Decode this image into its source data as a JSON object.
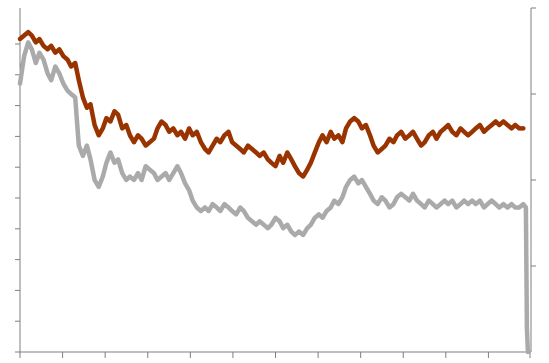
{
  "chart_data": {
    "type": "line",
    "title": "",
    "xlabel": "",
    "ylabel": "",
    "x_tick_count": 13,
    "left_tick_count": 11,
    "right_tick_count": 4,
    "xlim": [
      0,
      100
    ],
    "ylim": [
      0,
      100
    ],
    "grid": false,
    "legend": "none",
    "series": [
      {
        "color": "#993300",
        "values": [
          [
            0,
            91
          ],
          [
            0.8,
            92
          ],
          [
            1.6,
            93
          ],
          [
            2.3,
            92
          ],
          [
            3.1,
            90
          ],
          [
            3.8,
            91
          ],
          [
            4.6,
            89
          ],
          [
            5.4,
            88
          ],
          [
            6.1,
            89
          ],
          [
            6.9,
            87
          ],
          [
            7.7,
            88
          ],
          [
            8.5,
            86
          ],
          [
            9.3,
            85
          ],
          [
            10.0,
            83
          ],
          [
            10.8,
            84
          ],
          [
            11.5,
            79
          ],
          [
            12.3,
            74
          ],
          [
            13.1,
            71
          ],
          [
            13.8,
            72
          ],
          [
            14.6,
            66
          ],
          [
            15.4,
            63
          ],
          [
            16.2,
            65
          ],
          [
            16.9,
            68
          ],
          [
            17.7,
            67
          ],
          [
            18.5,
            70
          ],
          [
            19.2,
            69
          ],
          [
            20.0,
            65
          ],
          [
            20.8,
            66
          ],
          [
            21.5,
            63
          ],
          [
            22.3,
            61
          ],
          [
            23.1,
            63
          ],
          [
            23.8,
            62
          ],
          [
            24.6,
            60
          ],
          [
            25.4,
            61
          ],
          [
            26.2,
            62
          ],
          [
            26.9,
            65
          ],
          [
            27.7,
            67
          ],
          [
            28.5,
            66
          ],
          [
            29.2,
            64
          ],
          [
            30.0,
            65
          ],
          [
            30.8,
            63
          ],
          [
            31.5,
            64
          ],
          [
            32.3,
            62
          ],
          [
            33.1,
            65
          ],
          [
            33.8,
            63
          ],
          [
            34.6,
            64
          ],
          [
            35.4,
            61
          ],
          [
            36.2,
            59
          ],
          [
            36.9,
            58
          ],
          [
            37.7,
            60
          ],
          [
            38.5,
            62
          ],
          [
            39.2,
            61
          ],
          [
            40.0,
            63
          ],
          [
            40.8,
            64
          ],
          [
            41.5,
            61
          ],
          [
            42.3,
            60
          ],
          [
            43.1,
            59
          ],
          [
            43.8,
            58
          ],
          [
            44.6,
            60
          ],
          [
            45.4,
            59
          ],
          [
            46.2,
            58
          ],
          [
            46.9,
            57
          ],
          [
            47.7,
            58
          ],
          [
            48.5,
            56
          ],
          [
            49.2,
            55
          ],
          [
            50.0,
            54
          ],
          [
            50.8,
            57
          ],
          [
            51.5,
            55
          ],
          [
            52.3,
            58
          ],
          [
            53.1,
            56
          ],
          [
            53.8,
            54
          ],
          [
            54.6,
            52
          ],
          [
            55.4,
            51
          ],
          [
            56.2,
            53
          ],
          [
            56.9,
            55
          ],
          [
            57.7,
            58
          ],
          [
            58.5,
            61
          ],
          [
            59.2,
            63
          ],
          [
            60.0,
            61
          ],
          [
            60.8,
            64
          ],
          [
            61.5,
            62
          ],
          [
            62.3,
            63
          ],
          [
            63.1,
            61
          ],
          [
            63.8,
            65
          ],
          [
            64.6,
            67
          ],
          [
            65.4,
            68
          ],
          [
            66.2,
            67
          ],
          [
            66.9,
            65
          ],
          [
            67.7,
            66
          ],
          [
            68.5,
            63
          ],
          [
            69.2,
            60
          ],
          [
            70.0,
            58
          ],
          [
            70.8,
            59
          ],
          [
            71.5,
            60
          ],
          [
            72.3,
            62
          ],
          [
            73.1,
            61
          ],
          [
            73.8,
            63
          ],
          [
            74.6,
            64
          ],
          [
            75.4,
            62
          ],
          [
            76.2,
            63
          ],
          [
            76.9,
            64
          ],
          [
            77.7,
            62
          ],
          [
            78.5,
            60
          ],
          [
            79.2,
            61
          ],
          [
            80.0,
            63
          ],
          [
            80.8,
            64
          ],
          [
            81.5,
            62
          ],
          [
            82.3,
            64
          ],
          [
            83.1,
            65
          ],
          [
            83.8,
            66
          ],
          [
            84.6,
            64
          ],
          [
            85.4,
            63
          ],
          [
            86.2,
            65
          ],
          [
            86.9,
            64
          ],
          [
            87.7,
            63
          ],
          [
            88.5,
            64
          ],
          [
            89.2,
            65
          ],
          [
            90.0,
            66
          ],
          [
            90.8,
            64
          ],
          [
            91.5,
            65
          ],
          [
            92.3,
            66
          ],
          [
            93.1,
            67
          ],
          [
            93.8,
            66
          ],
          [
            94.6,
            67
          ],
          [
            95.4,
            66
          ],
          [
            96.2,
            65
          ],
          [
            96.9,
            66
          ],
          [
            97.7,
            65
          ],
          [
            98.5,
            65
          ]
        ]
      },
      {
        "color": "#aaaaaa",
        "values": [
          [
            0,
            78
          ],
          [
            0.8,
            86
          ],
          [
            1.6,
            90
          ],
          [
            2.3,
            88
          ],
          [
            3.1,
            84
          ],
          [
            3.8,
            87
          ],
          [
            4.6,
            85
          ],
          [
            5.4,
            81
          ],
          [
            6.1,
            79
          ],
          [
            6.9,
            83
          ],
          [
            7.7,
            81
          ],
          [
            8.5,
            78
          ],
          [
            9.3,
            76
          ],
          [
            10.0,
            75
          ],
          [
            10.8,
            74
          ],
          [
            11.5,
            60
          ],
          [
            12.3,
            57
          ],
          [
            13.1,
            60
          ],
          [
            13.8,
            56
          ],
          [
            14.6,
            50
          ],
          [
            15.4,
            48
          ],
          [
            16.2,
            51
          ],
          [
            16.9,
            55
          ],
          [
            17.7,
            58
          ],
          [
            18.5,
            55
          ],
          [
            19.2,
            56
          ],
          [
            20.0,
            52
          ],
          [
            20.8,
            50
          ],
          [
            21.5,
            51
          ],
          [
            22.3,
            50
          ],
          [
            23.1,
            52
          ],
          [
            23.8,
            50
          ],
          [
            24.6,
            54
          ],
          [
            25.4,
            53
          ],
          [
            26.2,
            52
          ],
          [
            26.9,
            50
          ],
          [
            27.7,
            51
          ],
          [
            28.5,
            52
          ],
          [
            29.2,
            50
          ],
          [
            30.0,
            52
          ],
          [
            30.8,
            54
          ],
          [
            31.5,
            52
          ],
          [
            32.3,
            49
          ],
          [
            33.1,
            47
          ],
          [
            33.8,
            44
          ],
          [
            34.6,
            42
          ],
          [
            35.4,
            41
          ],
          [
            36.2,
            42
          ],
          [
            36.9,
            41
          ],
          [
            37.7,
            43
          ],
          [
            38.5,
            42
          ],
          [
            39.2,
            41
          ],
          [
            40.0,
            43
          ],
          [
            40.8,
            42
          ],
          [
            41.5,
            41
          ],
          [
            42.3,
            40
          ],
          [
            43.1,
            42
          ],
          [
            43.8,
            41
          ],
          [
            44.6,
            39
          ],
          [
            45.4,
            38
          ],
          [
            46.2,
            37
          ],
          [
            46.9,
            38
          ],
          [
            47.7,
            37
          ],
          [
            48.5,
            36
          ],
          [
            49.2,
            37
          ],
          [
            50.0,
            39
          ],
          [
            50.8,
            38
          ],
          [
            51.5,
            36
          ],
          [
            52.3,
            37
          ],
          [
            53.1,
            35
          ],
          [
            53.8,
            34
          ],
          [
            54.6,
            35
          ],
          [
            55.4,
            34
          ],
          [
            56.2,
            36
          ],
          [
            56.9,
            37
          ],
          [
            57.7,
            39
          ],
          [
            58.5,
            40
          ],
          [
            59.2,
            39
          ],
          [
            60.0,
            41
          ],
          [
            60.8,
            42
          ],
          [
            61.5,
            44
          ],
          [
            62.3,
            43
          ],
          [
            63.1,
            45
          ],
          [
            63.8,
            48
          ],
          [
            64.6,
            50
          ],
          [
            65.4,
            51
          ],
          [
            66.2,
            49
          ],
          [
            66.9,
            50
          ],
          [
            67.7,
            48
          ],
          [
            68.5,
            46
          ],
          [
            69.2,
            44
          ],
          [
            70.0,
            43
          ],
          [
            70.8,
            45
          ],
          [
            71.5,
            44
          ],
          [
            72.3,
            42
          ],
          [
            73.1,
            43
          ],
          [
            73.8,
            45
          ],
          [
            74.6,
            46
          ],
          [
            75.4,
            45
          ],
          [
            76.2,
            44
          ],
          [
            76.9,
            46
          ],
          [
            77.7,
            44
          ],
          [
            78.5,
            43
          ],
          [
            79.2,
            42
          ],
          [
            80.0,
            44
          ],
          [
            80.8,
            43
          ],
          [
            81.5,
            42
          ],
          [
            82.3,
            43
          ],
          [
            83.1,
            44
          ],
          [
            83.8,
            43
          ],
          [
            84.6,
            44
          ],
          [
            85.4,
            42
          ],
          [
            86.2,
            43
          ],
          [
            86.9,
            44
          ],
          [
            87.7,
            43
          ],
          [
            88.5,
            44
          ],
          [
            89.2,
            43
          ],
          [
            90.0,
            44
          ],
          [
            90.8,
            42
          ],
          [
            91.5,
            43
          ],
          [
            92.3,
            44
          ],
          [
            93.1,
            43
          ],
          [
            93.8,
            42
          ],
          [
            94.6,
            43
          ],
          [
            95.4,
            42
          ],
          [
            96.2,
            43
          ],
          [
            96.9,
            42
          ],
          [
            97.7,
            42
          ],
          [
            98.5,
            43
          ],
          [
            99.0,
            42
          ],
          [
            99.2,
            7
          ],
          [
            99.4,
            0
          ]
        ]
      }
    ]
  }
}
